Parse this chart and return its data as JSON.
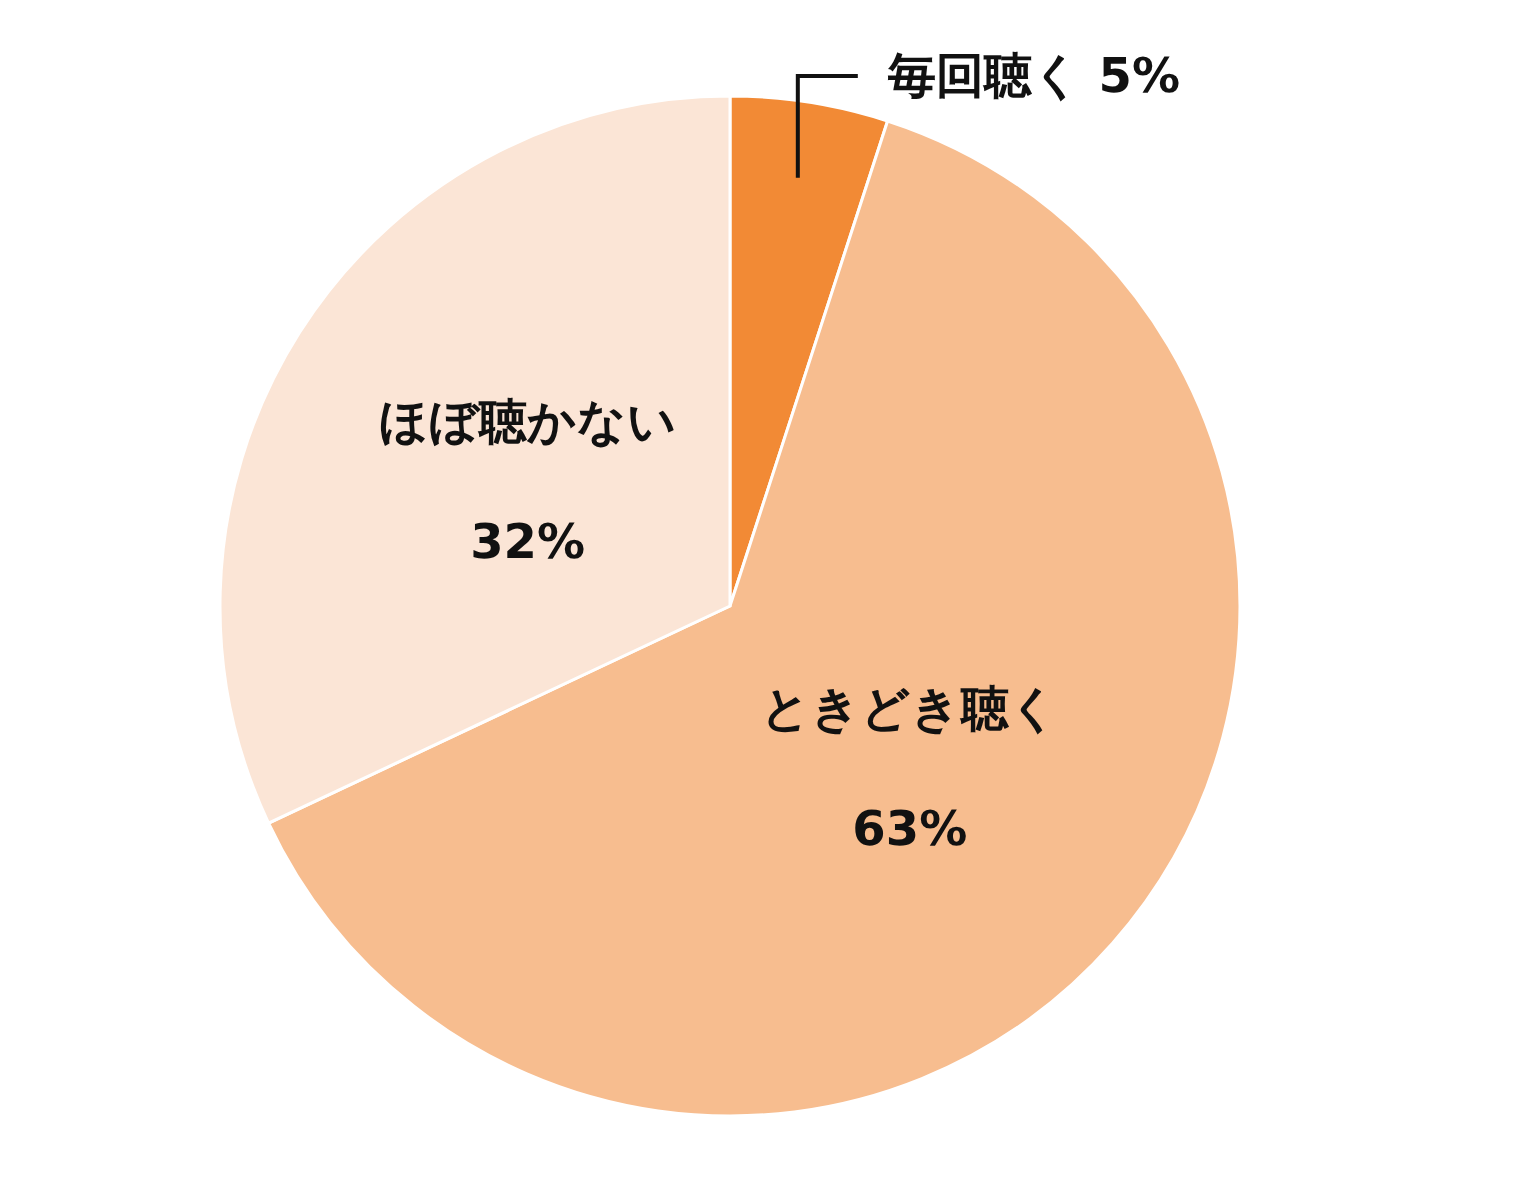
{
  "chart_data": {
    "type": "pie",
    "categories": [
      "毎回聴く",
      "ときどき聴く",
      "ほぼ聴かない"
    ],
    "values": [
      5,
      63,
      32
    ],
    "colors": [
      "#f28a35",
      "#f7bd8f",
      "#fbe5d6"
    ],
    "value_labels": [
      "5%",
      "63%",
      "32%"
    ]
  }
}
